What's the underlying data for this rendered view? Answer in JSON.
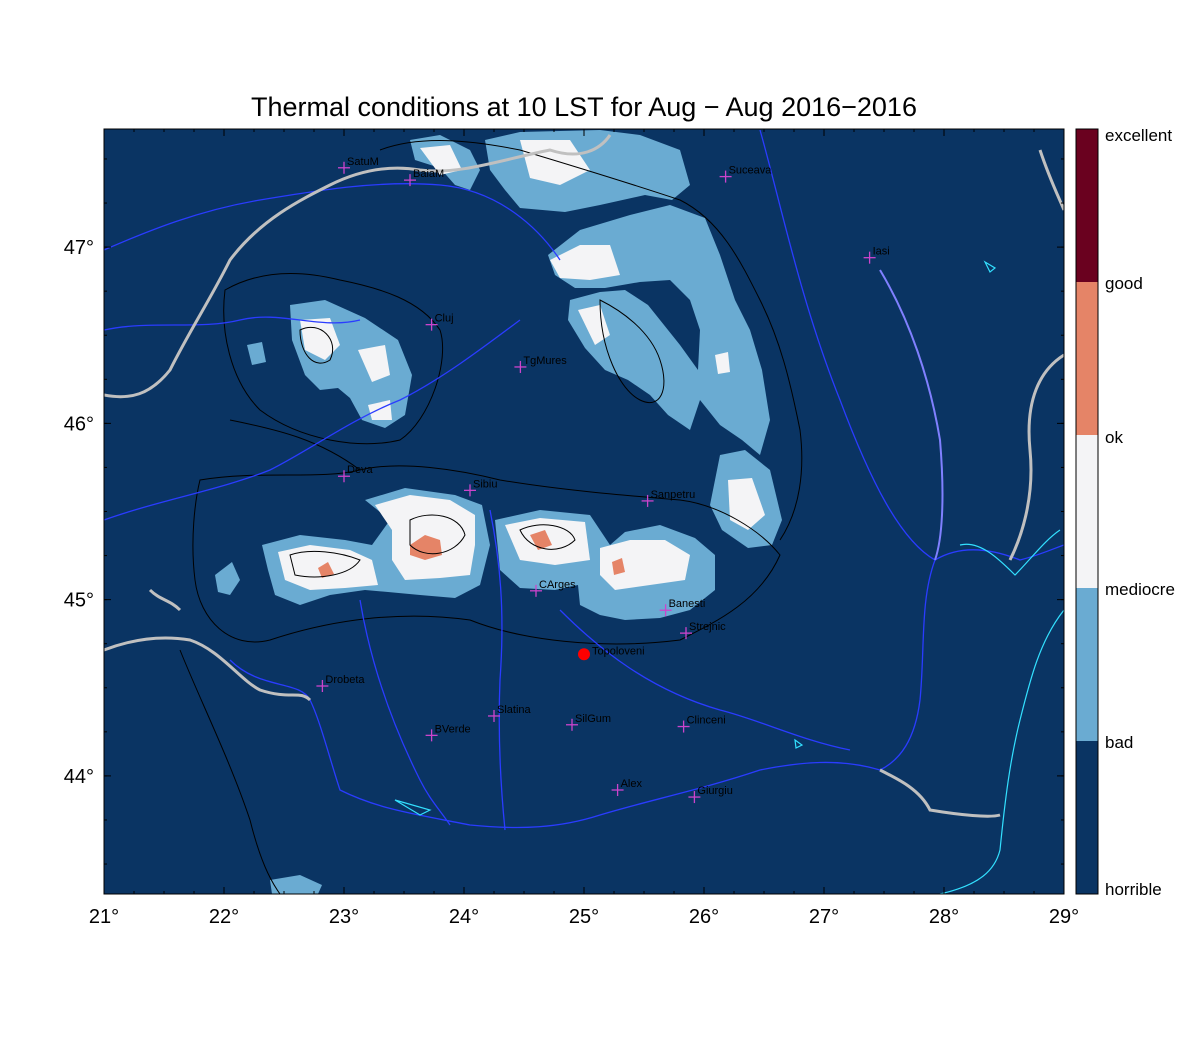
{
  "title": "Thermal conditions at 10 LST for Aug − Aug  2016−2016",
  "map": {
    "lon_range": [
      21,
      29
    ],
    "lat_range": [
      43.33,
      47.67
    ],
    "x_ticks": [
      "21°",
      "22°",
      "23°",
      "24°",
      "25°",
      "26°",
      "27°",
      "28°",
      "29°"
    ],
    "y_ticks": [
      "44°",
      "45°",
      "46°",
      "47°"
    ],
    "background_color": "#0a3463",
    "colors": {
      "horrible": "#0a3463",
      "bad": "#6aabd2",
      "mediocre": "#f4f4f6",
      "ok": "#e58467",
      "good": "#6a011f",
      "river": "#2a3cff",
      "coast": "#33e0ff",
      "border": "#c0c0c0",
      "city_marker": "#cc44cc",
      "highlight": "#ff0000"
    },
    "cities": [
      {
        "name": "SatuM",
        "lon": 23.0,
        "lat": 47.45
      },
      {
        "name": "BaiaM",
        "lon": 23.55,
        "lat": 47.38
      },
      {
        "name": "Suceava",
        "lon": 26.18,
        "lat": 47.4
      },
      {
        "name": "Iasi",
        "lon": 27.38,
        "lat": 46.94
      },
      {
        "name": "Cluj",
        "lon": 23.73,
        "lat": 46.56
      },
      {
        "name": "TgMures",
        "lon": 24.47,
        "lat": 46.32
      },
      {
        "name": "Deva",
        "lon": 23.0,
        "lat": 45.7
      },
      {
        "name": "Sibiu",
        "lon": 24.05,
        "lat": 45.62
      },
      {
        "name": "Sanpetru",
        "lon": 25.53,
        "lat": 45.56
      },
      {
        "name": "CArges",
        "lon": 24.6,
        "lat": 45.05
      },
      {
        "name": "Banesti",
        "lon": 25.68,
        "lat": 44.94
      },
      {
        "name": "Strejnic",
        "lon": 25.85,
        "lat": 44.81
      },
      {
        "name": "Drobeta",
        "lon": 22.82,
        "lat": 44.51
      },
      {
        "name": "Slatina",
        "lon": 24.25,
        "lat": 44.34
      },
      {
        "name": "SilGum",
        "lon": 24.9,
        "lat": 44.29
      },
      {
        "name": "Clinceni",
        "lon": 25.83,
        "lat": 44.28
      },
      {
        "name": "BVerde",
        "lon": 23.73,
        "lat": 44.23
      },
      {
        "name": "Alex",
        "lon": 25.28,
        "lat": 43.92
      },
      {
        "name": "Giurgiu",
        "lon": 25.92,
        "lat": 43.88
      }
    ],
    "highlight_site": {
      "name": "Topoloveni",
      "lon": 25.0,
      "lat": 44.69
    }
  },
  "legend": {
    "labels": [
      "excellent",
      "good",
      "ok",
      "mediocre",
      "bad",
      "horrible"
    ]
  }
}
